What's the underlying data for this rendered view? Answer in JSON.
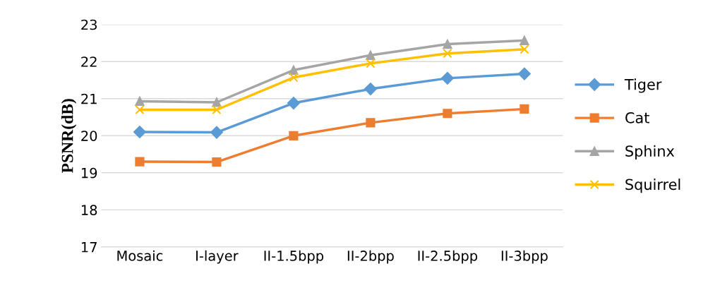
{
  "chart_data": {
    "type": "line",
    "ylabel": "PSNR(dB)",
    "categories": [
      "Mosaic",
      "I-layer",
      "II-1.5bpp",
      "II-2bpp",
      "II-2.5bpp",
      "II-3bpp"
    ],
    "series": [
      {
        "name": "Tiger",
        "color": "#5b9bd5",
        "marker": "diamond",
        "values": [
          20.1,
          20.09,
          20.88,
          21.26,
          21.55,
          21.67
        ]
      },
      {
        "name": "Cat",
        "color": "#ed7d31",
        "marker": "square",
        "values": [
          19.3,
          19.29,
          20.0,
          20.35,
          20.6,
          20.72
        ]
      },
      {
        "name": "Sphinx",
        "color": "#a5a5a5",
        "marker": "triangle",
        "values": [
          20.93,
          20.9,
          21.77,
          22.17,
          22.47,
          22.57
        ]
      },
      {
        "name": "Squirrel",
        "color": "#ffc000",
        "marker": "cross",
        "values": [
          20.7,
          20.7,
          21.57,
          21.95,
          22.22,
          22.33
        ]
      }
    ],
    "ylim": [
      17,
      23
    ],
    "yticks": [
      17,
      18,
      19,
      20,
      21,
      22,
      23
    ],
    "grid": "y",
    "legend": "right"
  }
}
